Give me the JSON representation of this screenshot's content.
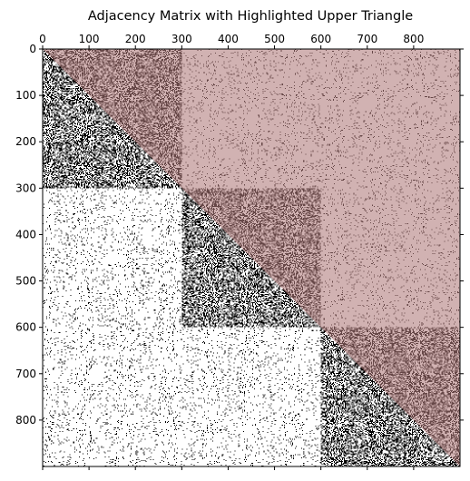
{
  "chart_data": {
    "type": "heatmap",
    "title": "Adjacency Matrix with Highlighted Upper Triangle",
    "xlabel": "",
    "ylabel": "",
    "matrix_size": 900,
    "x_axis_position": "top",
    "y_axis_direction": "top-to-bottom",
    "xlim": [
      0,
      900
    ],
    "ylim": [
      900,
      0
    ],
    "x_ticks": [
      0,
      100,
      200,
      300,
      400,
      500,
      600,
      700,
      800
    ],
    "y_ticks": [
      0,
      100,
      200,
      300,
      400,
      500,
      600,
      700,
      800
    ],
    "blocks": [
      {
        "start": 0,
        "end": 300
      },
      {
        "start": 300,
        "end": 600
      },
      {
        "start": 600,
        "end": 900
      }
    ],
    "density": {
      "within_block": 0.45,
      "between_blocks": 0.06
    },
    "colors": {
      "edge": "#000000",
      "empty": "#ffffff",
      "highlight": "#b07a7a",
      "highlight_opacity": 0.58
    },
    "highlight_region": "upper-triangle",
    "grid": false,
    "legend": "none"
  }
}
